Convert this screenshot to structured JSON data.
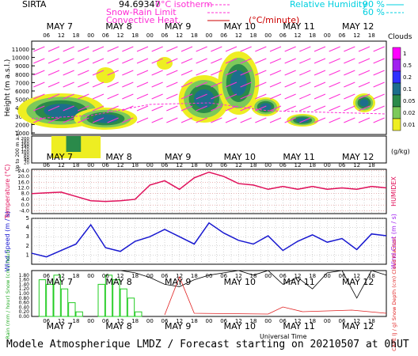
{
  "header": {
    "station": "SIRTA",
    "coords": "94.69347",
    "legend_isotherm": "0°C isotherm",
    "legend_snow_rain": "Snow-Rain Limit",
    "legend_convective": "Convective Heat.",
    "legend_convective_unit": "(°C/minute)",
    "legend_rh": "Relative Humidity",
    "rh_90": "90 %",
    "rh_60": "60 %"
  },
  "days": [
    "MAY 7",
    "MAY 8",
    "MAY 9",
    "MAY 10",
    "MAY 11",
    "MAY 12"
  ],
  "hour_ticks": [
    "06",
    "12",
    "18",
    "00"
  ],
  "panels": {
    "clouds_title": "Clouds",
    "clouds_unit": "(g/kg)",
    "clouds_scale": [
      "1",
      "0.5",
      "0.2",
      "0.1",
      "0.05",
      "0.02",
      "0.01"
    ],
    "clouds_colors": [
      "#ff00ff",
      "#a020f0",
      "#3030ff",
      "#1c6e8c",
      "#2a8a4a",
      "#7cc95a",
      "#eeee22"
    ],
    "height_ylabel": "Height (m a.s.l.)",
    "height_ticks": [
      "11000",
      "10000",
      "9000",
      "8000",
      "7000",
      "6000",
      "5000",
      "4000",
      "3000",
      "2000",
      "1000"
    ],
    "low_ylabel": "Up to 200 m a.s.l.",
    "low_ticks": [
      "200",
      "180",
      "160",
      "140",
      "120",
      "100",
      "80",
      "60",
      "40",
      "20"
    ],
    "temp_ylabel": "Temperature (°C)",
    "temp_right_label": "HUMIDEX",
    "temp_ticks": [
      "24.0",
      "20.0",
      "16.0",
      "12.0",
      "8.0",
      "4.0",
      "0.0",
      "-4.0"
    ],
    "wind_ylabel": "Wind Speed (m / s)",
    "wind_right_label": "Wind Gust (m / s)",
    "wind_ticks": [
      "5",
      "4",
      "3",
      "2",
      "1"
    ],
    "precip_ylabel": "Rain (mm / hour) Snow (cm / hour)",
    "precip_right_label": "CAPE (J / g) Snow Depth (cm) Cloud Fraction",
    "precip_ticks": [
      "1.80",
      "1.60",
      "1.40",
      "1.20",
      "1.00",
      "0.80",
      "0.60",
      "0.40",
      "0.20",
      "0.00"
    ],
    "xlabel": "Universal Time"
  },
  "chart_data": [
    {
      "type": "line",
      "title": "",
      "ylabel": "Temperature (°C)",
      "ylim": [
        -6,
        25
      ],
      "x_hours": [
        0,
        6,
        12,
        18,
        24,
        30,
        36,
        42,
        48,
        54,
        60,
        66,
        72,
        78,
        84,
        90,
        96,
        102,
        108,
        114,
        120,
        126,
        132,
        138,
        144
      ],
      "series": [
        {
          "name": "Temperature",
          "values": [
            8,
            8.5,
            9,
            6,
            3,
            2.5,
            3,
            4,
            14,
            17,
            11,
            19,
            23,
            20,
            15,
            14,
            11,
            13,
            11,
            13,
            11,
            12,
            11,
            13,
            12
          ]
        }
      ]
    },
    {
      "type": "line",
      "ylabel": "Wind Speed (m / s)",
      "ylim": [
        0,
        5
      ],
      "x_hours": [
        0,
        6,
        12,
        18,
        24,
        30,
        36,
        42,
        48,
        54,
        60,
        66,
        72,
        78,
        84,
        90,
        96,
        102,
        108,
        114,
        120,
        126,
        132,
        138,
        144
      ],
      "series": [
        {
          "name": "Wind Speed",
          "values": [
            1.2,
            0.8,
            1.5,
            2.2,
            4.3,
            1.8,
            1.4,
            2.5,
            3.0,
            3.8,
            3.0,
            2.2,
            4.5,
            3.4,
            2.6,
            2.2,
            3.1,
            1.5,
            2.5,
            3.2,
            2.4,
            2.8,
            1.6,
            3.3,
            3.1
          ]
        }
      ]
    },
    {
      "type": "bar",
      "ylabel": "Rain (mm / hour)",
      "ylim": [
        0,
        2
      ],
      "x_hours": [
        0,
        3,
        6,
        9,
        12,
        15,
        18,
        21,
        24,
        27,
        30,
        33,
        36,
        39,
        42,
        45,
        48,
        51,
        54,
        57,
        60,
        63,
        66,
        69,
        72
      ],
      "series": [
        {
          "name": "Rain",
          "values": [
            0.0,
            1.6,
            1.4,
            1.8,
            1.2,
            0.6,
            0.2,
            0.0,
            0.0,
            1.4,
            1.8,
            1.6,
            1.2,
            0.8,
            0.2,
            0.0,
            0.0,
            0.0,
            0.0,
            0.0,
            0.0,
            0.0,
            0.0,
            0.0,
            0.0
          ]
        }
      ]
    },
    {
      "type": "line",
      "ylabel": "Cloud Fraction",
      "ylim": [
        0,
        1
      ],
      "x_hours": [
        36,
        42,
        48,
        54,
        60,
        66,
        72,
        78,
        84,
        90,
        96,
        102,
        108,
        114,
        120,
        126,
        132,
        138,
        144
      ],
      "series": [
        {
          "name": "Cloud Fraction",
          "values": [
            1.0,
            0.95,
            0.85,
            0.7,
            0.65,
            0.8,
            0.9,
            0.95,
            1.0,
            0.9,
            1.0,
            0.7,
            0.85,
            0.6,
            0.95,
            1.0,
            0.4,
            1.0,
            0.9
          ]
        }
      ]
    }
  ],
  "footer": "Modele Atmospherique LMDZ / Forecast starting on 20210507 at 0hUT"
}
